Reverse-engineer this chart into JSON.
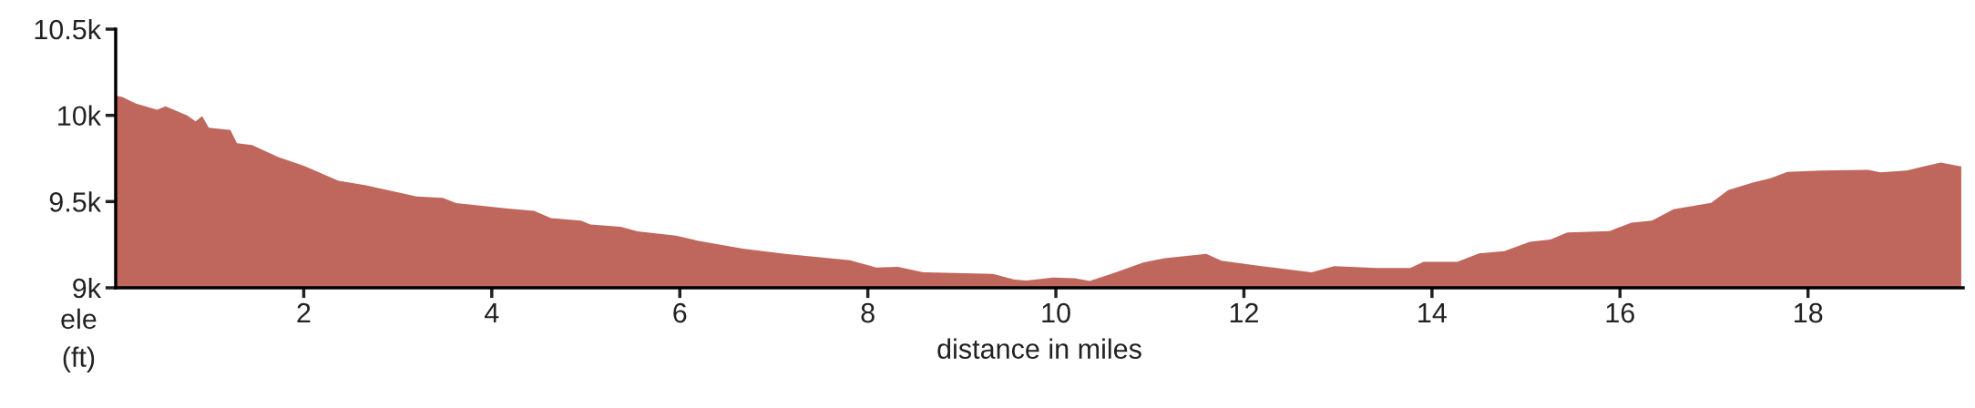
{
  "chart_data": {
    "type": "area",
    "xlabel": "distance in miles",
    "ylabel": "ele\n(ft)",
    "xlim": [
      0,
      19.65
    ],
    "xticks": [
      2,
      4,
      6,
      8,
      10,
      12,
      14,
      16,
      18
    ],
    "ylim": [
      9000,
      10500
    ],
    "yticks": [
      {
        "value": 9000,
        "label": "9k"
      },
      {
        "value": 9500,
        "label": "9.5k"
      },
      {
        "value": 10000,
        "label": "10k"
      },
      {
        "value": 10500,
        "label": "10.5k"
      }
    ],
    "series": [
      {
        "color": "#c0675d",
        "x": [
          0.0,
          0.07,
          0.21,
          0.44,
          0.53,
          0.76,
          0.85,
          0.92,
          0.99,
          1.22,
          1.29,
          1.45,
          1.73,
          2.0,
          2.37,
          2.65,
          3.06,
          3.2,
          3.48,
          3.62,
          4.17,
          4.45,
          4.63,
          4.95,
          5.05,
          5.37,
          5.55,
          5.96,
          6.2,
          6.67,
          7.12,
          7.81,
          8.09,
          8.32,
          8.59,
          9.33,
          9.56,
          9.69,
          9.97,
          10.2,
          10.36,
          10.61,
          10.93,
          11.16,
          11.6,
          11.76,
          12.17,
          12.72,
          12.96,
          13.41,
          13.77,
          13.91,
          14.27,
          14.5,
          14.77,
          15.04,
          15.26,
          15.44,
          15.89,
          16.12,
          16.34,
          16.57,
          16.97,
          17.15,
          17.42,
          17.6,
          17.78,
          18.14,
          18.64,
          18.77,
          19.05,
          19.23,
          19.41,
          19.63
        ],
        "values": [
          10115,
          10107,
          10070,
          10032,
          10052,
          10000,
          9965,
          9995,
          9928,
          9915,
          9838,
          9828,
          9758,
          9708,
          9621,
          9596,
          9546,
          9529,
          9521,
          9491,
          9459,
          9446,
          9404,
          9389,
          9367,
          9354,
          9327,
          9302,
          9272,
          9227,
          9197,
          9160,
          9117,
          9122,
          9090,
          9080,
          9047,
          9042,
          9060,
          9055,
          9040,
          9085,
          9147,
          9172,
          9197,
          9157,
          9127,
          9090,
          9125,
          9115,
          9115,
          9150,
          9150,
          9199,
          9213,
          9267,
          9280,
          9321,
          9329,
          9378,
          9390,
          9456,
          9493,
          9567,
          9611,
          9635,
          9672,
          9680,
          9684,
          9670,
          9680,
          9704,
          9726,
          9704
        ]
      }
    ]
  }
}
